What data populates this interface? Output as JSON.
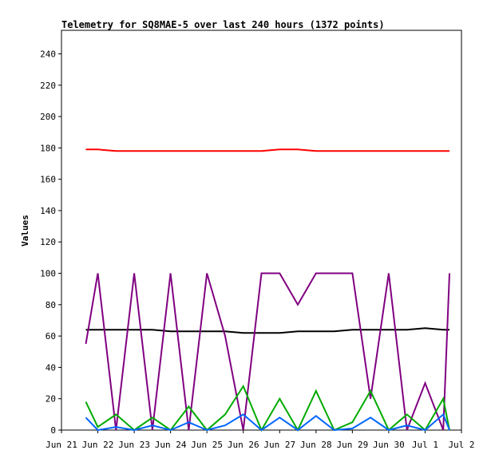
{
  "chart_data": {
    "type": "line",
    "title": "Telemetry for SQ8MAE-5 over last 240 hours (1372 points)",
    "xlabel": "",
    "ylabel": "Values",
    "ylim": [
      0,
      255
    ],
    "y_ticks": [
      0,
      20,
      40,
      60,
      80,
      100,
      120,
      140,
      160,
      180,
      200,
      220,
      240
    ],
    "x_ticks": [
      "Jun 21",
      "Jun 22",
      "Jun 23",
      "Jun 24",
      "Jun 25",
      "Jun 26",
      "Jun 27",
      "Jun 28",
      "Jun 29",
      "Jun 30",
      "Jul 1",
      "Jul 2"
    ],
    "grid": false,
    "legend": "none",
    "x": [
      "Jun 21 16:00",
      "Jun 22 00:00",
      "Jun 22 12:00",
      "Jun 23 00:00",
      "Jun 23 12:00",
      "Jun 24 00:00",
      "Jun 24 12:00",
      "Jun 25 00:00",
      "Jun 25 12:00",
      "Jun 26 00:00",
      "Jun 26 12:00",
      "Jun 27 00:00",
      "Jun 27 12:00",
      "Jun 28 00:00",
      "Jun 28 12:00",
      "Jun 29 00:00",
      "Jun 29 12:00",
      "Jun 30 00:00",
      "Jun 30 12:00",
      "Jul 1 00:00",
      "Jul 1 12:00",
      "Jul 1 16:00"
    ],
    "x_pos": [
      0.67,
      1.0,
      1.5,
      2.0,
      2.5,
      3.0,
      3.5,
      4.0,
      4.5,
      5.0,
      5.5,
      6.0,
      6.5,
      7.0,
      7.5,
      8.0,
      8.5,
      9.0,
      9.5,
      10.0,
      10.5,
      10.67
    ],
    "series": [
      {
        "color": "#ff0000",
        "values": [
          179,
          179,
          178,
          178,
          178,
          178,
          178,
          178,
          178,
          178,
          178,
          179,
          179,
          178,
          178,
          178,
          178,
          178,
          178,
          178,
          178,
          178
        ]
      },
      {
        "color": "#000000",
        "values": [
          64,
          64,
          64,
          64,
          64,
          63,
          63,
          63,
          63,
          62,
          62,
          62,
          63,
          63,
          63,
          64,
          64,
          64,
          64,
          65,
          64,
          64
        ]
      },
      {
        "color": "#800080",
        "values": [
          55,
          100,
          0,
          100,
          0,
          100,
          0,
          100,
          60,
          0,
          100,
          100,
          80,
          100,
          100,
          100,
          20,
          100,
          0,
          30,
          0,
          100
        ]
      },
      {
        "color": "#00aa00",
        "values": [
          18,
          2,
          10,
          0,
          8,
          0,
          15,
          0,
          10,
          28,
          0,
          20,
          0,
          25,
          0,
          5,
          25,
          0,
          10,
          0,
          20,
          0
        ]
      },
      {
        "color": "#0066ff",
        "values": [
          8,
          0,
          2,
          0,
          3,
          0,
          5,
          0,
          3,
          10,
          0,
          8,
          0,
          9,
          0,
          1,
          8,
          0,
          3,
          0,
          10,
          0
        ]
      }
    ]
  }
}
